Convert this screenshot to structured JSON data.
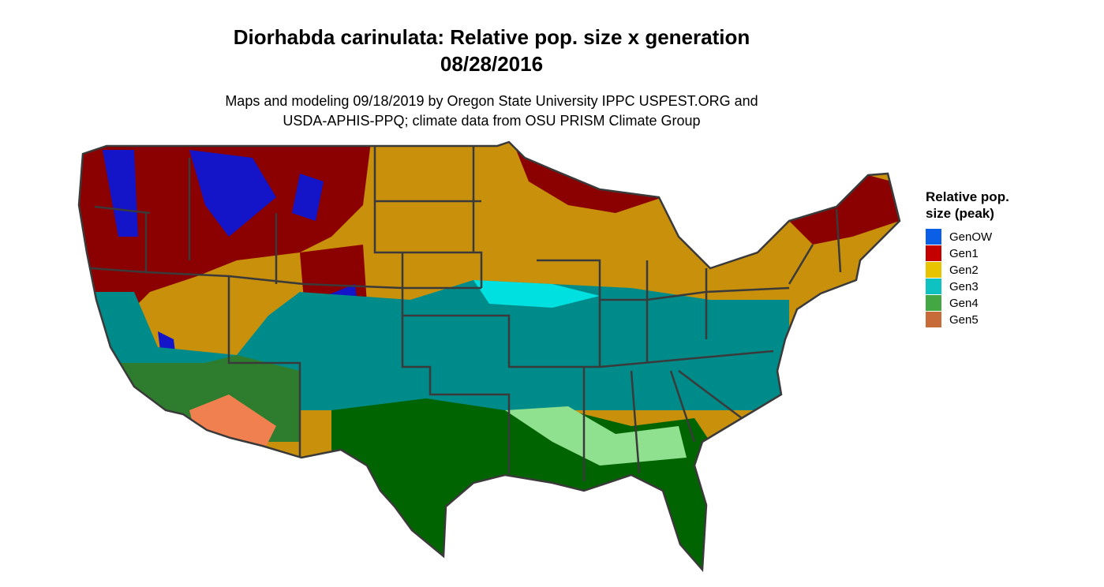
{
  "title": [
    "Diorhabda carinulata: Relative pop. size x generation",
    "08/28/2016"
  ],
  "subtitle": [
    "Maps and modeling 09/18/2019 by Oregon State University IPPC USPEST.ORG and",
    "USDA-APHIS-PPQ; climate data from OSU PRISM Climate Group"
  ],
  "legend": {
    "title": [
      "Relative pop.",
      "size (peak)"
    ],
    "items": [
      {
        "label": "GenOW",
        "color": "#0a5fe6"
      },
      {
        "label": "Gen1",
        "color": "#c40000"
      },
      {
        "label": "Gen2",
        "color": "#e8c400"
      },
      {
        "label": "Gen3",
        "color": "#0fc2c2"
      },
      {
        "label": "Gen4",
        "color": "#43a843"
      },
      {
        "label": "Gen5",
        "color": "#c76b39"
      }
    ]
  }
}
